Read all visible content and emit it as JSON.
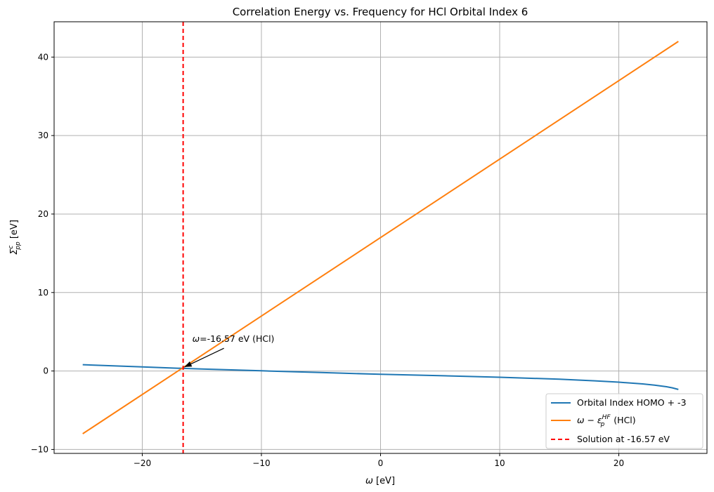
{
  "chart_data": {
    "type": "line",
    "title": "Correlation Energy vs. Frequency for HCl Orbital Index 6",
    "xlabel": {
      "sym": "ω",
      "unit": " [eV]"
    },
    "ylabel": {
      "sym": "Σ",
      "sup": "c",
      "sub": "pp",
      "unit": " [eV]"
    },
    "xlim": [
      -27.4,
      27.4
    ],
    "ylim": [
      -10.5,
      44.5
    ],
    "xticks": [
      -20,
      -10,
      0,
      10,
      20
    ],
    "yticks": [
      -10,
      0,
      10,
      20,
      30,
      40
    ],
    "xtick_labels": [
      "−20",
      "−10",
      "0",
      "10",
      "20"
    ],
    "ytick_labels": [
      "−10",
      "0",
      "10",
      "20",
      "30",
      "40"
    ],
    "grid": true,
    "legend_position": "lower-right",
    "series": [
      {
        "name": "Orbital Index HOMO + -3",
        "color": "#1f77b4",
        "x": [
          -25,
          -20,
          -16.57,
          -15,
          -10,
          -5,
          0,
          5,
          10,
          15,
          18,
          20,
          22,
          23,
          24,
          24.5,
          25
        ],
        "y": [
          0.8,
          0.52,
          0.33,
          0.25,
          0.03,
          -0.2,
          -0.42,
          -0.6,
          -0.8,
          -1.05,
          -1.25,
          -1.42,
          -1.65,
          -1.8,
          -2.0,
          -2.15,
          -2.35
        ]
      },
      {
        "name_parts": {
          "pre": "ω − ε",
          "sup": "HF",
          "sub": "p",
          "post": " (HCl)"
        },
        "color": "#ff7f0e",
        "x": [
          -25,
          25
        ],
        "y": [
          -8.0,
          42.0
        ]
      }
    ],
    "vline": {
      "x": -16.57,
      "color": "#ff0000",
      "label": "Solution at -16.57 eV"
    },
    "annotation": {
      "sym": "ω",
      "text": "=-16.57 eV (HCl)",
      "xy": [
        -16.57,
        0.33
      ],
      "xytext": [
        -15.8,
        3.7
      ]
    }
  }
}
